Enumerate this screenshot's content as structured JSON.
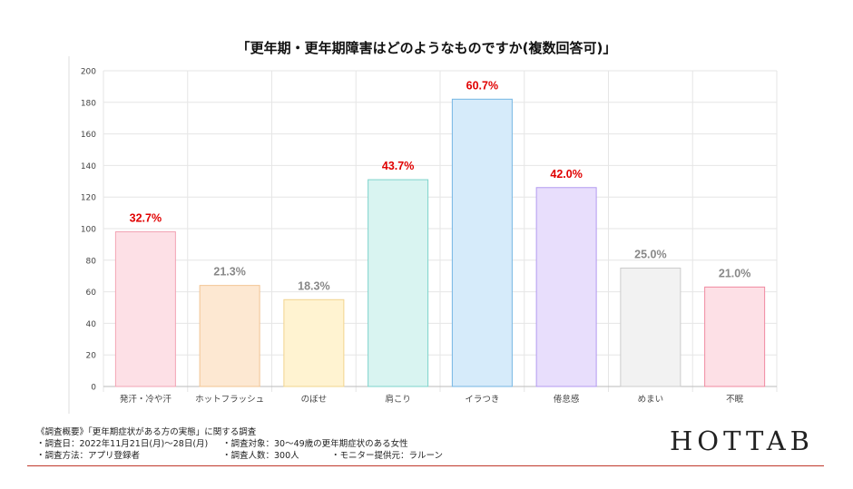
{
  "chart_data": {
    "type": "bar",
    "title": "「更年期・更年期障害はどのようなものですか(複数回答可)」",
    "categories": [
      "発汗・冷や汗",
      "ホットフラッシュ",
      "のぼせ",
      "肩こり",
      "イラつき",
      "倦怠感",
      "めまい",
      "不眠"
    ],
    "values": [
      98,
      64,
      55,
      131,
      182,
      126,
      75,
      63
    ],
    "data_labels": [
      "32.7%",
      "21.3%",
      "18.3%",
      "43.7%",
      "60.7%",
      "42.0%",
      "25.0%",
      "21.0%"
    ],
    "y_ticks": [
      "0",
      "20",
      "40",
      "60",
      "80",
      "100",
      "120",
      "140",
      "160",
      "180",
      "200"
    ],
    "ylim": [
      0,
      200
    ],
    "grid": true,
    "xlabel": "",
    "ylabel": "",
    "colors": {
      "fills": [
        "#fde0e6",
        "#fde8d2",
        "#fff3d1",
        "#d9f4f1",
        "#d6ebfa",
        "#e8defc",
        "#f2f2f2",
        "#fde0e6"
      ],
      "strokes": [
        "#f2a4b4",
        "#f2c493",
        "#f2d48e",
        "#7dd3cb",
        "#74b6e3",
        "#b39af0",
        "#cccccc",
        "#f08aa0"
      ],
      "label_highlight": "#e00000",
      "label_normal": "#888888",
      "grid": "#e6e6e6"
    },
    "highlight": [
      true,
      false,
      false,
      true,
      true,
      true,
      false,
      false
    ]
  },
  "footer": {
    "heading": "《調査概要》「更年期症状がある方の実態」に関する調査",
    "line2a": "・調査日：2022年11月21日(月)〜28日(月)",
    "line2b": "・調査対象：30〜49歳の更年期症状のある女性",
    "line3a": "・調査方法：アプリ登録者",
    "line3b": "・調査人数：300人",
    "line3c": "・モニター提供元：ラルーン"
  },
  "brand": "HOTTAB"
}
